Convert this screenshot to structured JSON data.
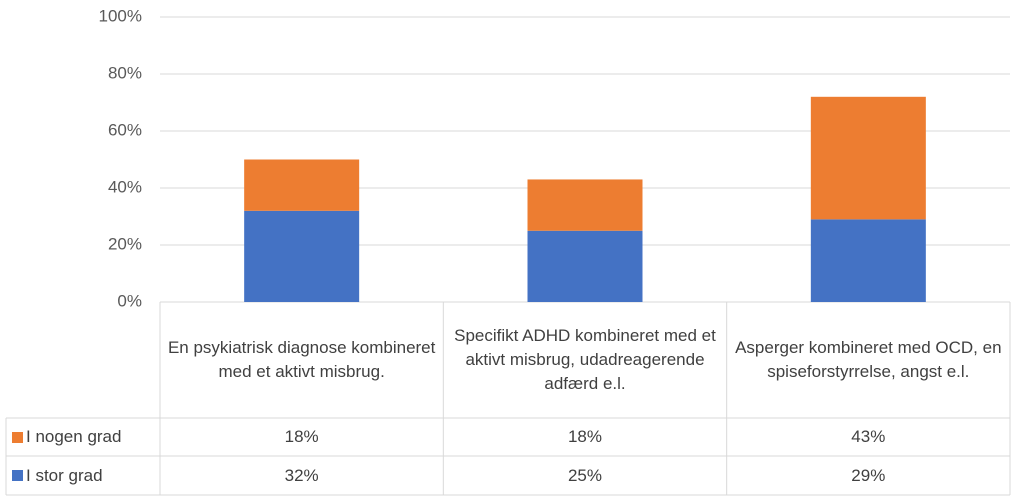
{
  "chart_data": {
    "type": "stacked_bar",
    "categories": [
      "En psykiatrisk diagnose kombineret med et aktivt misbrug.",
      "Specifikt ADHD kombineret med et aktivt misbrug, udadreagerende adfærd e.l.",
      "Asperger kombineret med OCD, en spiseforstyrrelse, angst e.l."
    ],
    "series": [
      {
        "name": "I nogen grad",
        "color": "#ed7d31",
        "values": [
          18,
          18,
          43
        ],
        "value_labels": [
          "18%",
          "18%",
          "43%"
        ]
      },
      {
        "name": "I stor grad",
        "color": "#4472c4",
        "values": [
          32,
          25,
          29
        ],
        "value_labels": [
          "32%",
          "25%",
          "29%"
        ]
      }
    ],
    "ylim": [
      0,
      100
    ],
    "yticks": [
      {
        "value": 0,
        "label": "0%"
      },
      {
        "value": 20,
        "label": "20%"
      },
      {
        "value": 40,
        "label": "40%"
      },
      {
        "value": 60,
        "label": "60%"
      },
      {
        "value": 80,
        "label": "80%"
      },
      {
        "value": 100,
        "label": "100%"
      }
    ],
    "grid": true
  }
}
